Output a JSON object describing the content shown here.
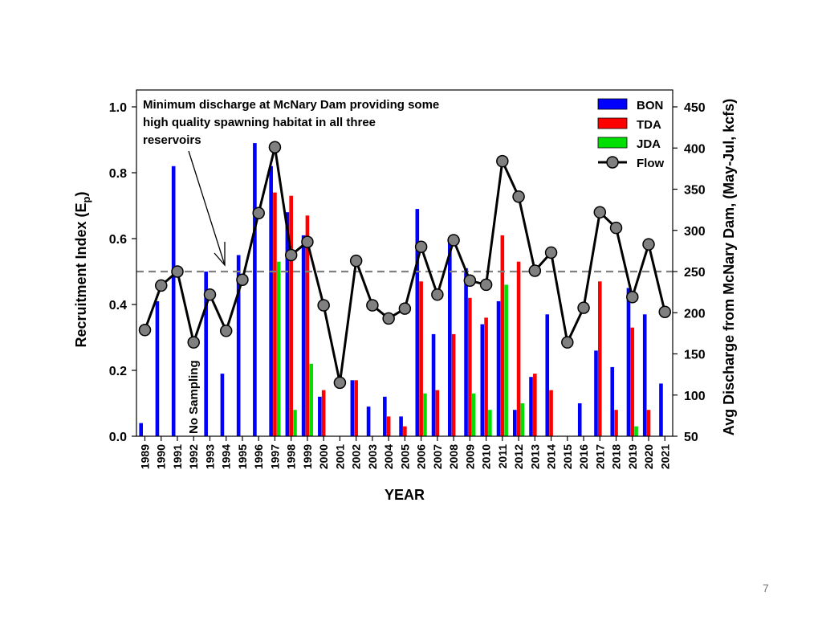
{
  "page": {
    "number": "7"
  },
  "chart_data": {
    "type": "bar",
    "xlabel": "YEAR",
    "ylabel": "Recruitment Index (E",
    "ylabel_sub": "p",
    "ylabel_close": ")",
    "y2label": "Avg Discharge from McNary Dam, (May-Jul, kcfs)",
    "ylim": [
      0,
      1.0
    ],
    "y2lim": [
      50,
      450
    ],
    "yticks": [
      "0.0",
      "0.2",
      "0.4",
      "0.6",
      "0.8",
      "1.0"
    ],
    "y2ticks": [
      "50",
      "100",
      "150",
      "200",
      "250",
      "300",
      "350",
      "400",
      "450"
    ],
    "categories": [
      "1989",
      "1990",
      "1991",
      "1992",
      "1993",
      "1994",
      "1995",
      "1996",
      "1997",
      "1998",
      "1999",
      "2000",
      "2001",
      "2002",
      "2003",
      "2004",
      "2005",
      "2006",
      "2007",
      "2008",
      "2009",
      "2010",
      "2011",
      "2012",
      "2013",
      "2014",
      "2015",
      "2016",
      "2017",
      "2018",
      "2019",
      "2020",
      "2021"
    ],
    "series": [
      {
        "name": "BON",
        "type": "bar",
        "color": "#0000ff",
        "values": [
          0.04,
          0.41,
          0.82,
          null,
          0.5,
          0.19,
          0.55,
          0.89,
          0.82,
          0.68,
          0.61,
          0.12,
          0,
          0.17,
          0.09,
          0.12,
          0.06,
          0.69,
          0.31,
          0.6,
          0.51,
          0.34,
          0.41,
          0.08,
          0.18,
          0.37,
          0,
          0.1,
          0.26,
          0.21,
          0.45,
          0.37,
          0.16
        ]
      },
      {
        "name": "TDA",
        "type": "bar",
        "color": "#ff0000",
        "values": [
          null,
          null,
          null,
          null,
          null,
          null,
          null,
          null,
          0.74,
          0.73,
          0.67,
          0.14,
          0,
          0.17,
          0,
          0.06,
          0.03,
          0.47,
          0.14,
          0.31,
          0.42,
          0.36,
          0.61,
          0.53,
          0.19,
          0.14,
          0,
          0,
          0.47,
          0.08,
          0.33,
          0.08,
          0
        ]
      },
      {
        "name": "JDA",
        "type": "bar",
        "color": "#00e000",
        "values": [
          null,
          null,
          null,
          null,
          null,
          null,
          null,
          null,
          0.53,
          0.08,
          0.22,
          0,
          0,
          0,
          0,
          0,
          0,
          0.13,
          0,
          0,
          0.13,
          0.08,
          0.46,
          0.1,
          0,
          0,
          0,
          0,
          0,
          0,
          0.03,
          0,
          0
        ]
      },
      {
        "name": "Flow",
        "type": "line",
        "color": "#000000",
        "marker": "#808080",
        "axis": "right",
        "values": [
          179,
          233,
          250,
          164,
          222,
          178,
          240,
          321,
          401,
          270,
          286,
          209,
          115,
          263,
          209,
          193,
          205,
          280,
          222,
          288,
          239,
          234,
          384,
          341,
          251,
          273,
          164,
          206,
          322,
          303,
          219,
          283,
          201
        ]
      }
    ],
    "reference_line": {
      "value": 0.5,
      "style": "dashed",
      "color": "#808080"
    },
    "annotation": {
      "lines": [
        "Minimum discharge at McNary Dam providing some",
        "high quality spawning habitat in all three",
        "reservoirs"
      ]
    },
    "no_sampling_label": "No Sampling",
    "legend_position": "top-right"
  }
}
